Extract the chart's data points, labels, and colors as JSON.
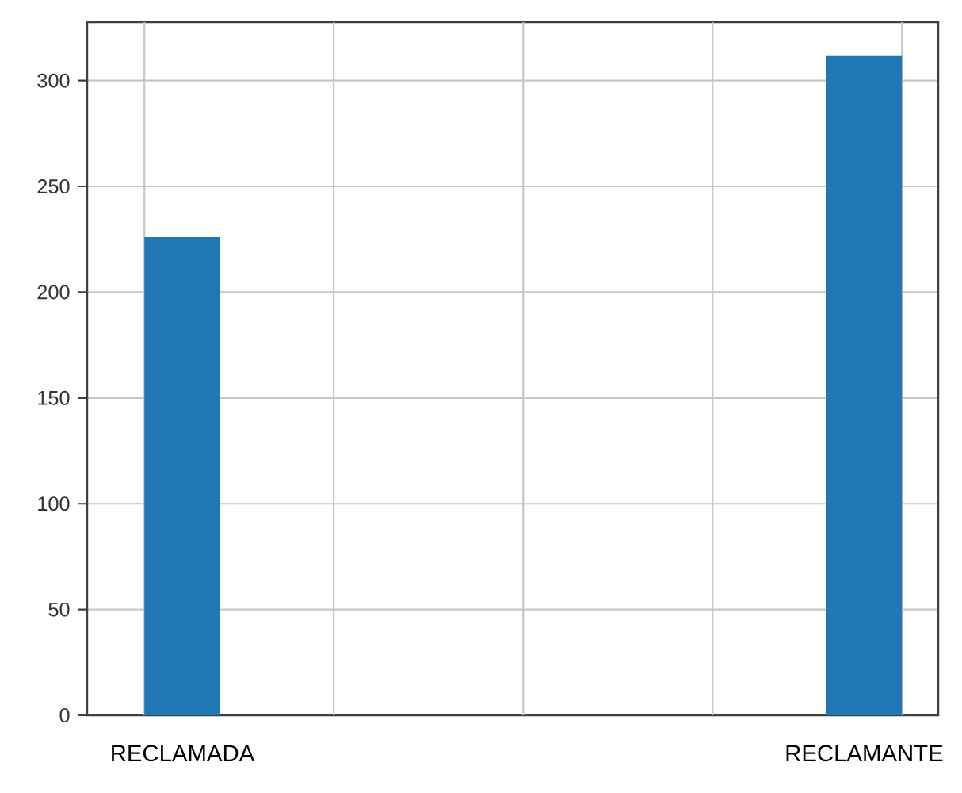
{
  "chart_data": {
    "type": "bar",
    "categories": [
      "RECLAMADA",
      null,
      null,
      null,
      null,
      null,
      null,
      null,
      null,
      "RECLAMANTE"
    ],
    "values": [
      226,
      0,
      0,
      0,
      0,
      0,
      0,
      0,
      0,
      312
    ],
    "color": "#1f77b4",
    "ylim": [
      0,
      327.6
    ],
    "yticks": [
      0,
      50,
      100,
      150,
      200,
      250,
      300
    ],
    "grid": true
  }
}
